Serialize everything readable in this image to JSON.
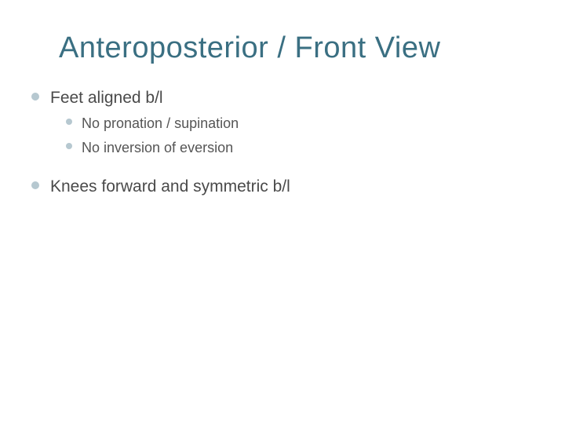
{
  "slide": {
    "title": "Anteroposterior / Front View",
    "title_color": "#3a6f82",
    "title_fontsize": 38,
    "background_color": "#ffffff",
    "bullet_color": "#b6c8d0",
    "text_color_l1": "#4a4a4a",
    "text_color_l2": "#555555",
    "fontsize_l1": 21,
    "fontsize_l2": 18,
    "bullets": [
      {
        "level": 1,
        "text": "Feet aligned b/l",
        "children": [
          {
            "level": 2,
            "text": "No pronation / supination"
          },
          {
            "level": 2,
            "text": "No inversion of eversion"
          }
        ]
      },
      {
        "level": 1,
        "text": "Knees forward and symmetric b/l",
        "children": []
      }
    ]
  }
}
